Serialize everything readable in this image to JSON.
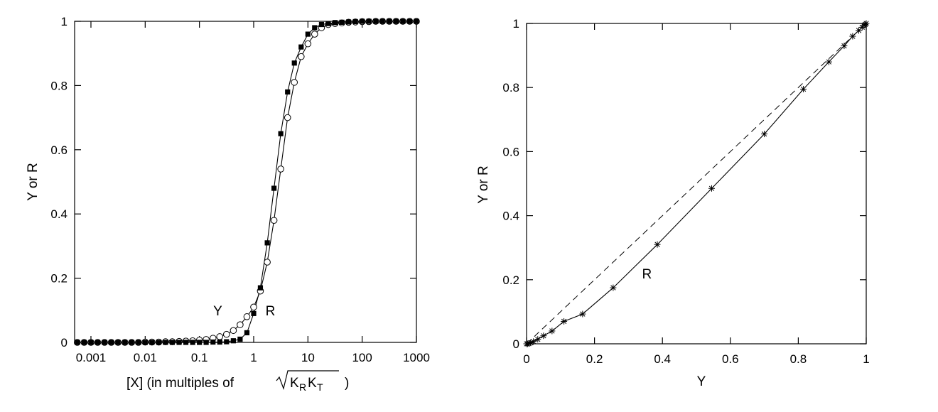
{
  "chart_data": [
    {
      "type": "line",
      "xscale": "log",
      "xlim": [
        0.0005,
        1000
      ],
      "ylim": [
        0,
        1
      ],
      "xticks": [
        {
          "value": 0.001,
          "label": "0.001"
        },
        {
          "value": 0.01,
          "label": "0.01"
        },
        {
          "value": 0.1,
          "label": "0.1"
        },
        {
          "value": 1,
          "label": "1"
        },
        {
          "value": 10,
          "label": "10"
        },
        {
          "value": 100,
          "label": "100"
        },
        {
          "value": 1000,
          "label": "1000"
        }
      ],
      "yticks": [
        {
          "value": 0,
          "label": "0"
        },
        {
          "value": 0.2,
          "label": "0.2"
        },
        {
          "value": 0.4,
          "label": "0.4"
        },
        {
          "value": 0.6,
          "label": "0.6"
        },
        {
          "value": 0.8,
          "label": "0.8"
        },
        {
          "value": 1,
          "label": "1"
        }
      ],
      "xlabel": "[X]   (in multiples of",
      "xlabel_sqrt": "K",
      "xlabel_sub1": "R",
      "xlabel_k2": "K",
      "xlabel_sub2": "T",
      "xlabel_close": ")",
      "ylabel": "Y or R",
      "series": [
        {
          "name": "Y",
          "marker": "open-circle",
          "x": [
            0.00056,
            0.00075,
            0.001,
            0.00133,
            0.00178,
            0.00237,
            0.00316,
            0.00422,
            0.00562,
            0.0075,
            0.01,
            0.0133,
            0.0178,
            0.0237,
            0.0316,
            0.0422,
            0.0562,
            0.075,
            0.1,
            0.133,
            0.178,
            0.237,
            0.316,
            0.422,
            0.562,
            0.75,
            1,
            1.33,
            1.78,
            2.37,
            3.16,
            4.22,
            5.62,
            7.5,
            10,
            13.3,
            17.8,
            23.7,
            31.6,
            42.2,
            56.2,
            75,
            100,
            133,
            178,
            237,
            316,
            422,
            562,
            750,
            1000
          ],
          "y": [
            0.0,
            0.0,
            0.0,
            0.0,
            0.0,
            0.0,
            0.0,
            0.0,
            0.0,
            0.0,
            0.001,
            0.001,
            0.001,
            0.002,
            0.002,
            0.003,
            0.004,
            0.005,
            0.007,
            0.009,
            0.013,
            0.018,
            0.025,
            0.037,
            0.055,
            0.08,
            0.11,
            0.16,
            0.25,
            0.38,
            0.54,
            0.7,
            0.81,
            0.89,
            0.93,
            0.96,
            0.98,
            0.99,
            0.993,
            0.995,
            0.997,
            0.998,
            0.999,
            0.999,
            1.0,
            1.0,
            1.0,
            1.0,
            1.0,
            1.0,
            1.0
          ]
        },
        {
          "name": "R",
          "marker": "filled-square",
          "x": [
            0.00056,
            0.00075,
            0.001,
            0.00133,
            0.00178,
            0.00237,
            0.00316,
            0.00422,
            0.00562,
            0.0075,
            0.01,
            0.0133,
            0.0178,
            0.0237,
            0.0316,
            0.0422,
            0.0562,
            0.075,
            0.1,
            0.133,
            0.178,
            0.237,
            0.316,
            0.422,
            0.562,
            0.75,
            1,
            1.33,
            1.78,
            2.37,
            3.16,
            4.22,
            5.62,
            7.5,
            10,
            13.3,
            17.8,
            23.7,
            31.6,
            42.2,
            56.2,
            75,
            100,
            133,
            178,
            237,
            316,
            422,
            562,
            750,
            1000
          ],
          "y": [
            0.0,
            0.0,
            0.0,
            0.0,
            0.0,
            0.0,
            0.0,
            0.0,
            0.0,
            0.0,
            0.0,
            0.0,
            0.0,
            0.0,
            0.0,
            0.0,
            0.0,
            0.0,
            0.0,
            0.0,
            0.001,
            0.001,
            0.002,
            0.005,
            0.01,
            0.03,
            0.09,
            0.17,
            0.31,
            0.48,
            0.65,
            0.78,
            0.87,
            0.92,
            0.96,
            0.98,
            0.99,
            0.993,
            0.996,
            0.997,
            0.998,
            0.999,
            1.0,
            1.0,
            1.0,
            1.0,
            1.0,
            1.0,
            1.0,
            1.0,
            1.0
          ]
        }
      ],
      "annotations": [
        {
          "text": "Y",
          "x": 0.18,
          "y": 0.1
        },
        {
          "text": "R",
          "x": 1.65,
          "y": 0.1
        }
      ],
      "grid": false
    },
    {
      "type": "line",
      "xlim": [
        0,
        1
      ],
      "ylim": [
        0,
        1
      ],
      "xticks": [
        {
          "value": 0,
          "label": "0"
        },
        {
          "value": 0.2,
          "label": "0.2"
        },
        {
          "value": 0.4,
          "label": "0.4"
        },
        {
          "value": 0.6,
          "label": "0.6"
        },
        {
          "value": 0.8,
          "label": "0.8"
        },
        {
          "value": 1,
          "label": "1"
        }
      ],
      "yticks": [
        {
          "value": 0,
          "label": "0"
        },
        {
          "value": 0.2,
          "label": "0.2"
        },
        {
          "value": 0.4,
          "label": "0.4"
        },
        {
          "value": 0.6,
          "label": "0.6"
        },
        {
          "value": 0.8,
          "label": "0.8"
        },
        {
          "value": 1,
          "label": "1"
        }
      ],
      "xlabel": "Y",
      "ylabel": "Y or R",
      "series": [
        {
          "name": "R",
          "marker": "asterisk",
          "x": [
            0.0,
            0.003,
            0.007,
            0.012,
            0.02,
            0.033,
            0.05,
            0.075,
            0.11,
            0.165,
            0.255,
            0.385,
            0.545,
            0.7,
            0.815,
            0.89,
            0.935,
            0.96,
            0.978,
            0.988,
            0.994,
            0.997,
            1.0
          ],
          "y": [
            0.0,
            0.0,
            0.001,
            0.003,
            0.007,
            0.014,
            0.025,
            0.04,
            0.07,
            0.093,
            0.175,
            0.31,
            0.485,
            0.655,
            0.795,
            0.88,
            0.93,
            0.96,
            0.978,
            0.988,
            0.994,
            0.997,
            1.0
          ]
        }
      ],
      "reference_line": {
        "style": "dashed",
        "x": [
          0,
          1
        ],
        "y": [
          0,
          1
        ]
      },
      "annotations": [
        {
          "text": "R",
          "x": 0.34,
          "y": 0.22
        }
      ],
      "grid": false
    }
  ]
}
